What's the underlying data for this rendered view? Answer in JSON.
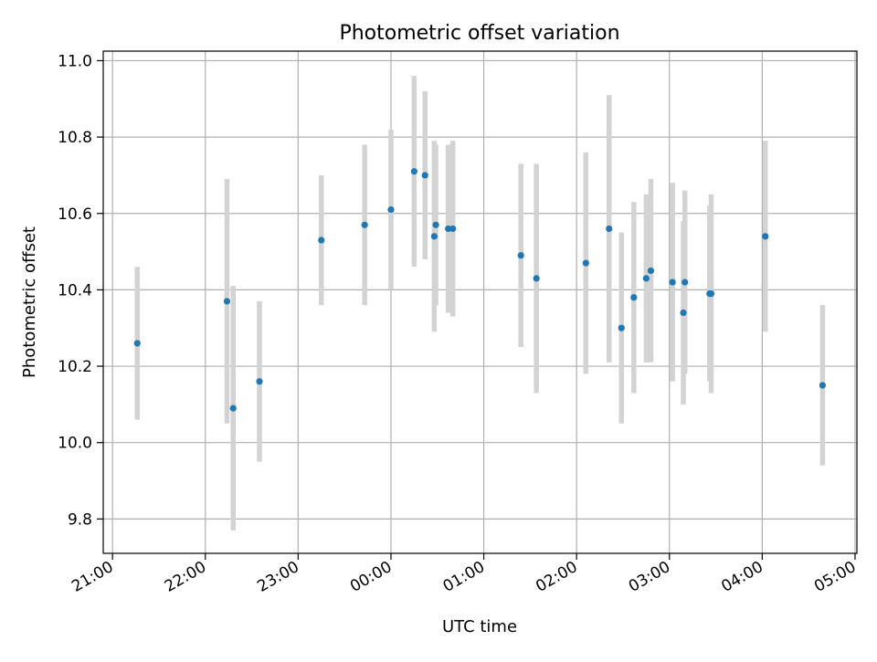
{
  "chart_data": {
    "type": "scatter",
    "title": "Photometric offset variation",
    "xlabel": "UTC time",
    "ylabel": "Photometric offset",
    "x_tick_labels": [
      "21:00",
      "22:00",
      "23:00",
      "00:00",
      "01:00",
      "02:00",
      "03:00",
      "04:00",
      "05:00"
    ],
    "y_ticks": [
      9.8,
      10.0,
      10.2,
      10.4,
      10.6,
      10.8,
      11.0
    ],
    "y_tick_labels": [
      "9.8",
      "10.0",
      "10.2",
      "10.4",
      "10.6",
      "10.8",
      "11.0"
    ],
    "ylim": [
      9.71,
      11.025
    ],
    "xlim_hours": [
      20.9,
      29.02
    ],
    "grid": true,
    "marker_color": "#1f77b4",
    "errorbar_color": "#d3d3d3",
    "points": [
      {
        "time": "21:16",
        "y": 10.26,
        "yerr": 0.2
      },
      {
        "time": "22:14",
        "y": 10.37,
        "yerr": 0.32
      },
      {
        "time": "22:18",
        "y": 10.09,
        "yerr": 0.32
      },
      {
        "time": "22:35",
        "y": 10.16,
        "yerr": 0.21
      },
      {
        "time": "23:15",
        "y": 10.53,
        "yerr": 0.17
      },
      {
        "time": "23:43",
        "y": 10.57,
        "yerr": 0.21
      },
      {
        "time": "00:00",
        "y": 10.61,
        "yerr": 0.21
      },
      {
        "time": "00:15",
        "y": 10.71,
        "yerr": 0.25
      },
      {
        "time": "00:22",
        "y": 10.7,
        "yerr": 0.22
      },
      {
        "time": "00:28",
        "y": 10.54,
        "yerr": 0.25
      },
      {
        "time": "00:29",
        "y": 10.57,
        "yerr": 0.21
      },
      {
        "time": "00:37",
        "y": 10.56,
        "yerr": 0.22
      },
      {
        "time": "00:40",
        "y": 10.56,
        "yerr": 0.23
      },
      {
        "time": "01:24",
        "y": 10.49,
        "yerr": 0.24
      },
      {
        "time": "01:34",
        "y": 10.43,
        "yerr": 0.3
      },
      {
        "time": "02:06",
        "y": 10.47,
        "yerr": 0.29
      },
      {
        "time": "02:21",
        "y": 10.56,
        "yerr": 0.35
      },
      {
        "time": "02:29",
        "y": 10.3,
        "yerr": 0.25
      },
      {
        "time": "02:37",
        "y": 10.38,
        "yerr": 0.25
      },
      {
        "time": "02:45",
        "y": 10.43,
        "yerr": 0.22
      },
      {
        "time": "02:48",
        "y": 10.45,
        "yerr": 0.24
      },
      {
        "time": "03:02",
        "y": 10.42,
        "yerr": 0.26
      },
      {
        "time": "03:09",
        "y": 10.34,
        "yerr": 0.24
      },
      {
        "time": "03:10",
        "y": 10.42,
        "yerr": 0.24
      },
      {
        "time": "03:26",
        "y": 10.39,
        "yerr": 0.23
      },
      {
        "time": "03:27",
        "y": 10.39,
        "yerr": 0.26
      },
      {
        "time": "04:02",
        "y": 10.54,
        "yerr": 0.25
      },
      {
        "time": "04:39",
        "y": 10.15,
        "yerr": 0.21
      }
    ]
  }
}
